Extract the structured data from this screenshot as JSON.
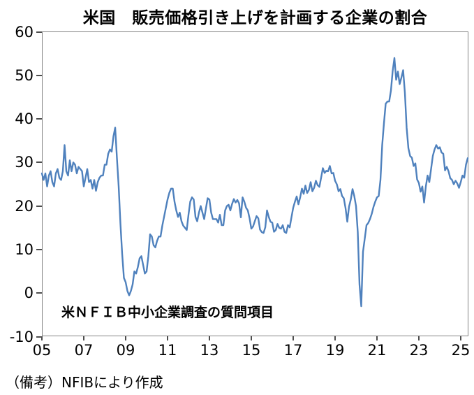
{
  "title": "米国　販売価格引き上げを計画する企業の割合",
  "annotation": "米ＮＦＩＢ中小企業調査の質問項目",
  "footnote": "（備考）NFIBにより作成",
  "chart_data": {
    "type": "line",
    "title": "米国　販売価格引き上げを計画する企業の割合",
    "xlabel": "",
    "ylabel": "",
    "ylim": [
      -10,
      60
    ],
    "y_ticks": [
      60,
      50,
      40,
      30,
      20,
      10,
      0,
      -10
    ],
    "x_tick_labels": [
      "05",
      "07",
      "09",
      "11",
      "13",
      "15",
      "17",
      "19",
      "21",
      "23",
      "25"
    ],
    "x_tick_years": [
      2005,
      2007,
      2009,
      2011,
      2013,
      2015,
      2017,
      2019,
      2021,
      2023,
      2025
    ],
    "grid": "off",
    "legend": "none",
    "line_color": "#4F81BD",
    "frequency": "monthly",
    "start_period": "2005-01",
    "end_period": "2025-05",
    "series": [
      {
        "name": "販売価格引き上げを計画する企業の割合",
        "values": [
          27.5,
          26,
          27.5,
          24.5,
          27,
          28,
          25.5,
          24.5,
          27.5,
          28.5,
          26.5,
          26,
          28,
          34,
          28,
          27,
          30.5,
          28,
          30,
          29.5,
          27.5,
          29,
          28.5,
          28,
          24.5,
          26.5,
          28.5,
          25.5,
          26,
          24,
          26,
          23.5,
          25.5,
          26.5,
          27,
          27,
          29.5,
          29.5,
          32,
          33,
          32.5,
          36,
          38,
          31,
          24.5,
          16,
          9,
          3.5,
          2.5,
          0.5,
          -0.5,
          0.5,
          2,
          5,
          4.5,
          6,
          8,
          8.5,
          6.5,
          4.5,
          5,
          8.5,
          13.5,
          13,
          11,
          10.5,
          12,
          13,
          13,
          15.5,
          17.5,
          19.5,
          21.5,
          23,
          24,
          24,
          21,
          19,
          17.5,
          18.5,
          16.5,
          15.5,
          15,
          14.5,
          18,
          21,
          22,
          21.5,
          17.5,
          16.5,
          18.5,
          20,
          18.5,
          17,
          19.5,
          21.8,
          21.5,
          18.5,
          17,
          17,
          17,
          16.2,
          18,
          15.6,
          15.6,
          19,
          20,
          20.3,
          19,
          20.5,
          21.6,
          20.8,
          21.4,
          20.6,
          17.4,
          22,
          21,
          19.6,
          19,
          17.2,
          14.8,
          15.3,
          16.5,
          17.7,
          17.2,
          14.6,
          14,
          13.8,
          15.1,
          19,
          17.5,
          16.4,
          16.2,
          14.1,
          14.5,
          15.9,
          15,
          14.8,
          15.6,
          14.1,
          13.8,
          15.6,
          15.1,
          17.4,
          19.6,
          21,
          22.2,
          20.4,
          22,
          24,
          22.8,
          24.7,
          23,
          23.7,
          25.5,
          23.4,
          24.2,
          25.8,
          24.8,
          24.4,
          26.5,
          28.7,
          27.6,
          28.1,
          28,
          29.2,
          27.5,
          27.6,
          25.8,
          25,
          23.4,
          23.9,
          22.3,
          21.8,
          19.5,
          16.4,
          19.9,
          21.5,
          23.9,
          22.3,
          20,
          14,
          2,
          -3,
          9.5,
          12.5,
          15.6,
          16.1,
          17,
          18.2,
          19.8,
          21,
          22,
          22.3,
          26,
          34,
          39,
          43.5,
          44,
          44,
          46.5,
          51,
          54,
          49,
          50.9,
          48,
          49.5,
          51.2,
          46,
          38,
          33.3,
          31.5,
          31.1,
          29.2,
          29.8,
          26.1,
          25.3,
          23.3,
          24.5,
          20.8,
          24.5,
          27,
          25.5,
          28.5,
          31.5,
          33,
          34,
          33.2,
          33.5,
          32.3,
          32,
          28.2,
          29,
          28,
          26.4,
          26,
          25,
          25.8,
          25.2,
          24.2,
          25.5,
          27,
          26.5,
          29.5,
          31
        ]
      }
    ],
    "annotation": "米ＮＦＩＢ中小企業調査の質問項目",
    "source_note": "（備考）NFIBにより作成"
  }
}
